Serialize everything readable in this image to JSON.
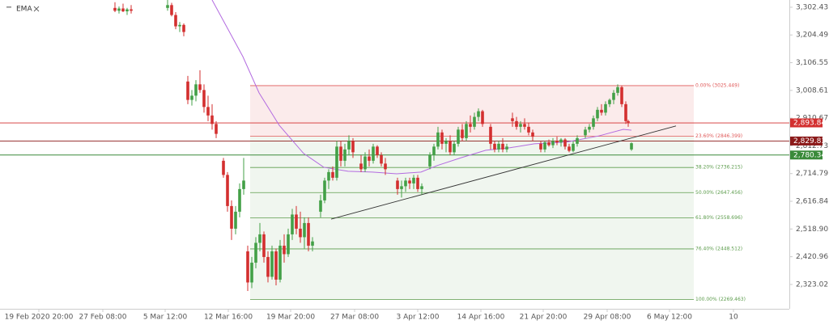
{
  "chart_data": {
    "type": "candlestick",
    "xlim": [
      0,
      975
    ],
    "ylim": [
      2237,
      3328
    ],
    "yticks": [
      {
        "value": 3302.43,
        "label": "3,302.43"
      },
      {
        "value": 3204.49,
        "label": "3,204.49"
      },
      {
        "value": 3106.55,
        "label": "3,106.55"
      },
      {
        "value": 3008.61,
        "label": "3,008.61"
      },
      {
        "value": 2910.67,
        "label": "2,910.67"
      },
      {
        "value": 2812.73,
        "label": "2,812.73"
      },
      {
        "value": 2714.79,
        "label": "2,714.79"
      },
      {
        "value": 2616.84,
        "label": "2,616.84"
      },
      {
        "value": 2518.9,
        "label": "2,518.90"
      },
      {
        "value": 2420.96,
        "label": "2,420.96"
      },
      {
        "value": 2323.02,
        "label": "2,323.02"
      }
    ],
    "xticks": [
      {
        "value": 48,
        "label": "19 Feb 2020 20:00"
      },
      {
        "value": 127,
        "label": "27 Feb 08:00"
      },
      {
        "value": 204,
        "label": "5 Mar 12:00"
      },
      {
        "value": 282,
        "label": "12 Mar 16:00"
      },
      {
        "value": 359,
        "label": "19 Mar 20:00"
      },
      {
        "value": 438,
        "label": "27 Mar 08:00"
      },
      {
        "value": 516,
        "label": "3 Apr 12:00"
      },
      {
        "value": 594,
        "label": "14 Apr 16:00"
      },
      {
        "value": 671,
        "label": "21 Apr 20:00"
      },
      {
        "value": 750,
        "label": "29 Apr 08:00"
      },
      {
        "value": 827,
        "label": "6 May 12:00"
      },
      {
        "value": 906,
        "label": "10"
      }
    ],
    "up_color": "#43a047",
    "down_color": "#d32f2f",
    "x": [
      142,
      147,
      152,
      157,
      162,
      207,
      212,
      217,
      222,
      227,
      232,
      237,
      242,
      247,
      252,
      257,
      262,
      267,
      276,
      281,
      286,
      291,
      296,
      301,
      306,
      311,
      316,
      321,
      326,
      331,
      336,
      341,
      346,
      351,
      356,
      361,
      366,
      371,
      376,
      381,
      386,
      396,
      401,
      406,
      411,
      416,
      421,
      426,
      431,
      436,
      446,
      451,
      456,
      461,
      466,
      471,
      476,
      491,
      496,
      501,
      506,
      511,
      516,
      521,
      531,
      536,
      541,
      546,
      551,
      556,
      561,
      566,
      571,
      576,
      581,
      586,
      591,
      596,
      606,
      611,
      616,
      621,
      626,
      633,
      638,
      643,
      648,
      653,
      658,
      668,
      673,
      678,
      683,
      688,
      693,
      698,
      703,
      708,
      713,
      723,
      728,
      733,
      738,
      743,
      748,
      753,
      758,
      763,
      768,
      773,
      776,
      780
    ],
    "open": [
      3300,
      3290,
      3298,
      3288,
      3295,
      3300,
      3310,
      3275,
      3235,
      3240,
      3040,
      2975,
      2990,
      3030,
      3010,
      2950,
      2920,
      2890,
      2760,
      2710,
      2600,
      2520,
      2580,
      2660,
      2440,
      2330,
      2400,
      2470,
      2500,
      2420,
      2350,
      2440,
      2340,
      2460,
      2430,
      2500,
      2570,
      2520,
      2490,
      2540,
      2460,
      2580,
      2620,
      2690,
      2720,
      2700,
      2810,
      2760,
      2800,
      2830,
      2750,
      2730,
      2775,
      2760,
      2810,
      2780,
      2750,
      2690,
      2660,
      2670,
      2690,
      2680,
      2700,
      2660,
      2740,
      2780,
      2810,
      2860,
      2820,
      2830,
      2790,
      2820,
      2870,
      2840,
      2890,
      2880,
      2915,
      2935,
      2880,
      2820,
      2800,
      2820,
      2800,
      2910,
      2900,
      2880,
      2890,
      2880,
      2860,
      2820,
      2800,
      2825,
      2815,
      2830,
      2825,
      2835,
      2810,
      2795,
      2820,
      2850,
      2870,
      2880,
      2910,
      2940,
      2930,
      2960,
      2975,
      3000,
      3020,
      2960,
      2900,
      2800
    ],
    "high": [
      3320,
      3305,
      3315,
      3300,
      3310,
      3330,
      3318,
      3285,
      3250,
      3245,
      3060,
      3010,
      3045,
      3080,
      3030,
      2990,
      2960,
      2900,
      2770,
      2720,
      2620,
      2600,
      2680,
      2770,
      2460,
      2420,
      2490,
      2540,
      2510,
      2440,
      2460,
      2450,
      2480,
      2500,
      2520,
      2590,
      2600,
      2580,
      2560,
      2560,
      2490,
      2640,
      2700,
      2730,
      2740,
      2830,
      2830,
      2820,
      2850,
      2840,
      2780,
      2790,
      2800,
      2820,
      2815,
      2790,
      2770,
      2700,
      2690,
      2700,
      2700,
      2710,
      2710,
      2680,
      2790,
      2820,
      2880,
      2870,
      2840,
      2850,
      2830,
      2880,
      2890,
      2900,
      2920,
      2930,
      2945,
      2940,
      2890,
      2830,
      2830,
      2840,
      2820,
      2930,
      2915,
      2900,
      2910,
      2895,
      2870,
      2830,
      2830,
      2835,
      2840,
      2845,
      2840,
      2840,
      2820,
      2830,
      2850,
      2880,
      2890,
      2920,
      2950,
      2960,
      2970,
      2980,
      3010,
      3030,
      3025,
      2970,
      2905,
      2825
    ],
    "low": [
      3285,
      3280,
      3285,
      3275,
      3280,
      3290,
      3270,
      3225,
      3215,
      3200,
      2960,
      2955,
      2970,
      3000,
      2930,
      2900,
      2870,
      2840,
      2700,
      2580,
      2480,
      2500,
      2560,
      2640,
      2300,
      2310,
      2380,
      2440,
      2400,
      2330,
      2340,
      2320,
      2330,
      2400,
      2420,
      2480,
      2500,
      2470,
      2450,
      2440,
      2440,
      2560,
      2610,
      2660,
      2690,
      2690,
      2740,
      2740,
      2780,
      2770,
      2720,
      2720,
      2740,
      2750,
      2770,
      2740,
      2710,
      2640,
      2630,
      2650,
      2660,
      2660,
      2650,
      2640,
      2730,
      2760,
      2800,
      2800,
      2790,
      2780,
      2780,
      2810,
      2830,
      2830,
      2860,
      2870,
      2900,
      2880,
      2800,
      2790,
      2790,
      2790,
      2790,
      2880,
      2870,
      2860,
      2870,
      2850,
      2830,
      2790,
      2790,
      2810,
      2805,
      2815,
      2810,
      2800,
      2790,
      2790,
      2810,
      2840,
      2860,
      2870,
      2900,
      2920,
      2920,
      2950,
      2960,
      2990,
      2950,
      2890,
      2880,
      2795
    ],
    "close": [
      3290,
      3298,
      3288,
      3295,
      3290,
      3310,
      3275,
      3235,
      3240,
      3215,
      2975,
      2990,
      3030,
      3010,
      2950,
      2920,
      2890,
      2855,
      2710,
      2600,
      2520,
      2580,
      2660,
      2690,
      2330,
      2400,
      2470,
      2500,
      2420,
      2350,
      2440,
      2340,
      2460,
      2430,
      2500,
      2570,
      2520,
      2490,
      2540,
      2460,
      2475,
      2620,
      2690,
      2720,
      2700,
      2810,
      2760,
      2800,
      2830,
      2790,
      2730,
      2775,
      2760,
      2810,
      2780,
      2750,
      2730,
      2660,
      2670,
      2690,
      2680,
      2700,
      2660,
      2670,
      2780,
      2810,
      2860,
      2820,
      2830,
      2790,
      2820,
      2870,
      2840,
      2890,
      2880,
      2915,
      2935,
      2890,
      2820,
      2800,
      2820,
      2800,
      2810,
      2900,
      2880,
      2890,
      2880,
      2860,
      2845,
      2800,
      2825,
      2815,
      2830,
      2825,
      2835,
      2810,
      2795,
      2820,
      2840,
      2870,
      2880,
      2910,
      2940,
      2930,
      2960,
      2975,
      3000,
      3020,
      2960,
      2900,
      2895,
      2822
    ],
    "ema": {
      "name": "EMA",
      "color": "#b36be0",
      "x": [
        262,
        300,
        320,
        345,
        375,
        400,
        430,
        460,
        490,
        520,
        540,
        570,
        600,
        630,
        660,
        700,
        740,
        770,
        780
      ],
      "values": [
        3328,
        3128,
        3000,
        2885,
        2786,
        2737,
        2723,
        2720,
        2714,
        2720,
        2743,
        2771,
        2797,
        2806,
        2820,
        2826,
        2848,
        2871,
        2868
      ]
    },
    "trendline": {
      "color": "#333333",
      "x": [
        409,
        835
      ],
      "values": [
        2554,
        2883
      ]
    },
    "fibonacci": {
      "x_start": 309,
      "x_end": 857,
      "upper_color": "#e05a5a",
      "lower_color": "#5c9c4c",
      "levels": [
        {
          "value": 3025.449,
          "label": "0.00% (3025.449)"
        },
        {
          "value": 2846.399,
          "label": "23.60% (2846.399)"
        },
        {
          "value": 2736.215,
          "label": "38.20% (2736.215)"
        },
        {
          "value": 2647.456,
          "label": "50.00% (2647.456)"
        },
        {
          "value": 2558.696,
          "label": "61.80% (2558.696)"
        },
        {
          "value": 2448.512,
          "label": "76.40% (2448.512)"
        },
        {
          "value": 2269.463,
          "label": "100.00% (2269.463)"
        }
      ]
    },
    "price_lines": [
      {
        "value": 2893.84,
        "label": "2,893.84",
        "color": "#d32f2f"
      },
      {
        "value": 2829.83,
        "label": "2,829.83",
        "color": "#8b1a1a"
      },
      {
        "value": 2780.34,
        "label": "2,780.34",
        "color": "#3a8a3a"
      }
    ]
  }
}
